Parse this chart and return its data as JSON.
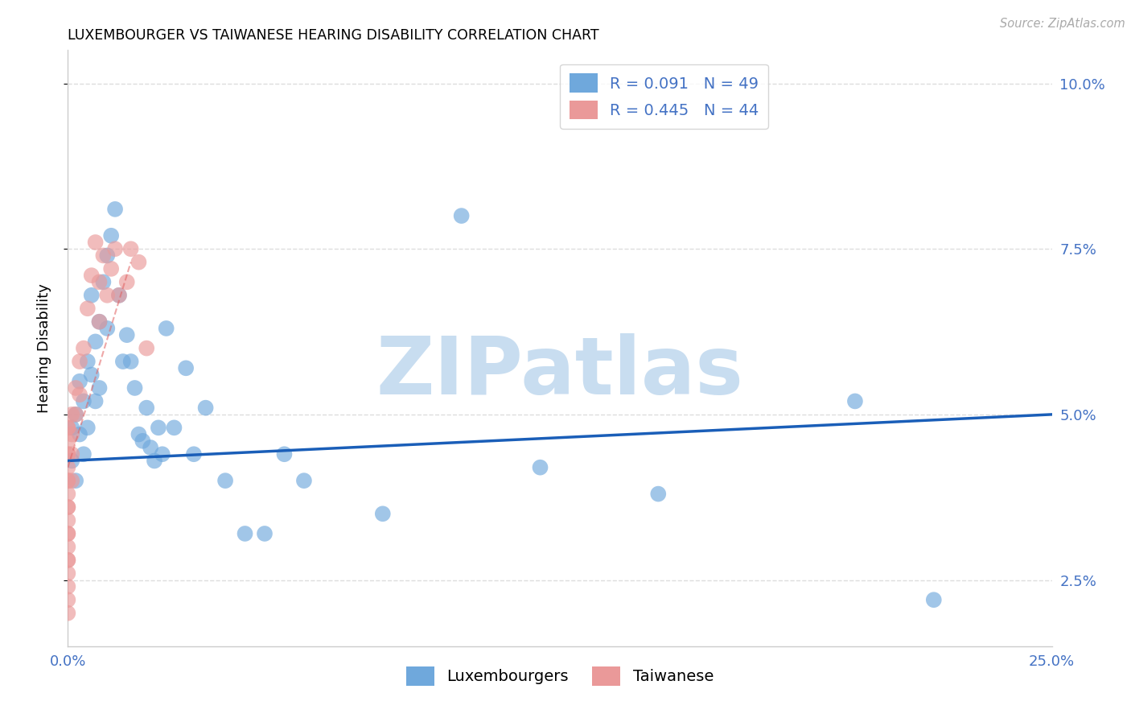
{
  "title": "LUXEMBOURGER VS TAIWANESE HEARING DISABILITY CORRELATION CHART",
  "source": "Source: ZipAtlas.com",
  "ylabel": "Hearing Disability",
  "xlim": [
    0.0,
    0.25
  ],
  "ylim": [
    0.015,
    0.105
  ],
  "xticks": [
    0.0,
    0.05,
    0.1,
    0.15,
    0.2,
    0.25
  ],
  "xticklabels": [
    "0.0%",
    "",
    "",
    "",
    "",
    "25.0%"
  ],
  "yticks": [
    0.025,
    0.05,
    0.075,
    0.1
  ],
  "yticklabels": [
    "2.5%",
    "5.0%",
    "7.5%",
    "10.0%"
  ],
  "blue_color": "#6fa8dc",
  "pink_color": "#ea9999",
  "line_blue_color": "#1a5eb8",
  "line_pink_color": "#e06060",
  "r_blue": 0.091,
  "n_blue": 49,
  "r_pink": 0.445,
  "n_pink": 44,
  "blue_line_x": [
    0.0,
    0.25
  ],
  "blue_line_y": [
    0.043,
    0.05
  ],
  "pink_line_x": [
    0.0,
    0.016
  ],
  "pink_line_y": [
    0.042,
    0.073
  ],
  "blue_x": [
    0.001,
    0.001,
    0.002,
    0.002,
    0.003,
    0.003,
    0.004,
    0.004,
    0.005,
    0.005,
    0.006,
    0.006,
    0.007,
    0.007,
    0.008,
    0.008,
    0.009,
    0.01,
    0.01,
    0.011,
    0.012,
    0.013,
    0.014,
    0.015,
    0.016,
    0.017,
    0.018,
    0.019,
    0.02,
    0.021,
    0.022,
    0.023,
    0.024,
    0.025,
    0.027,
    0.03,
    0.032,
    0.035,
    0.04,
    0.045,
    0.05,
    0.055,
    0.06,
    0.08,
    0.1,
    0.12,
    0.15,
    0.2,
    0.22
  ],
  "blue_y": [
    0.048,
    0.043,
    0.05,
    0.04,
    0.055,
    0.047,
    0.052,
    0.044,
    0.058,
    0.048,
    0.068,
    0.056,
    0.061,
    0.052,
    0.064,
    0.054,
    0.07,
    0.074,
    0.063,
    0.077,
    0.081,
    0.068,
    0.058,
    0.062,
    0.058,
    0.054,
    0.047,
    0.046,
    0.051,
    0.045,
    0.043,
    0.048,
    0.044,
    0.063,
    0.048,
    0.057,
    0.044,
    0.051,
    0.04,
    0.032,
    0.032,
    0.044,
    0.04,
    0.035,
    0.08,
    0.042,
    0.038,
    0.052,
    0.022
  ],
  "pink_x": [
    0.0,
    0.0,
    0.0,
    0.0,
    0.0,
    0.0,
    0.0,
    0.0,
    0.0,
    0.0,
    0.0,
    0.0,
    0.0,
    0.0,
    0.0,
    0.0,
    0.0,
    0.0,
    0.0,
    0.0,
    0.0,
    0.001,
    0.001,
    0.001,
    0.001,
    0.002,
    0.002,
    0.003,
    0.003,
    0.004,
    0.005,
    0.006,
    0.007,
    0.008,
    0.008,
    0.009,
    0.01,
    0.011,
    0.012,
    0.013,
    0.015,
    0.016,
    0.018,
    0.02
  ],
  "pink_y": [
    0.048,
    0.046,
    0.044,
    0.042,
    0.04,
    0.038,
    0.036,
    0.034,
    0.032,
    0.03,
    0.028,
    0.026,
    0.024,
    0.022,
    0.02,
    0.048,
    0.044,
    0.04,
    0.036,
    0.032,
    0.028,
    0.05,
    0.047,
    0.044,
    0.04,
    0.054,
    0.05,
    0.058,
    0.053,
    0.06,
    0.066,
    0.071,
    0.076,
    0.07,
    0.064,
    0.074,
    0.068,
    0.072,
    0.075,
    0.068,
    0.07,
    0.075,
    0.073,
    0.06
  ],
  "watermark_text": "ZIPatlas",
  "watermark_color": "#c8ddf0",
  "background_color": "#ffffff",
  "grid_color": "#dddddd",
  "tick_color": "#4472c4",
  "spine_color": "#cccccc",
  "legend1_label_blue": "R = 0.091   N = 49",
  "legend1_label_pink": "R = 0.445   N = 44",
  "legend2_label_blue": "Luxembourgers",
  "legend2_label_pink": "Taiwanese"
}
